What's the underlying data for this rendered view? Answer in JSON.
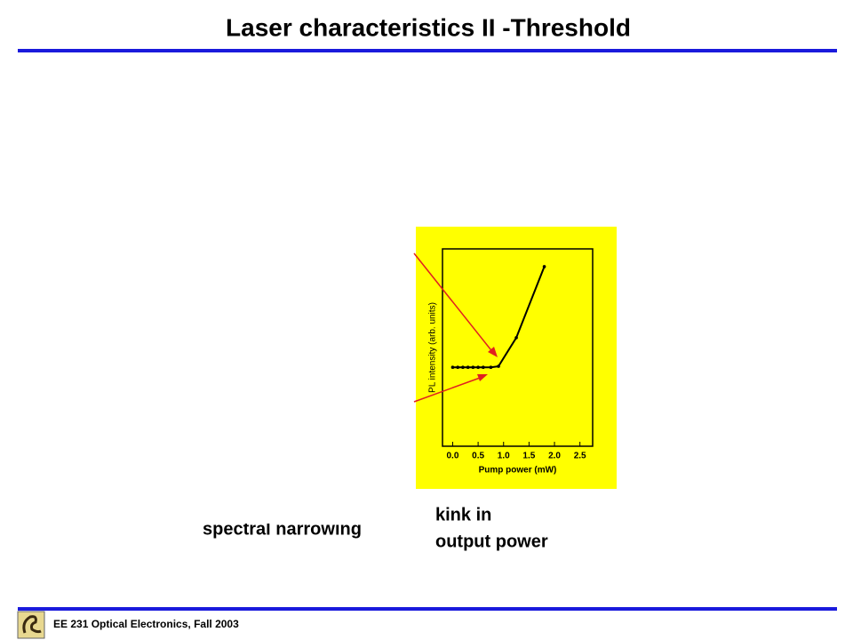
{
  "header": {
    "title": "Laser characteristics II -Threshold"
  },
  "chart_data": {
    "type": "line",
    "xlabel": "Pump power (mW)",
    "ylabel": "PL intensity (arb. units)",
    "x": [
      0.0,
      0.1,
      0.2,
      0.3,
      0.4,
      0.5,
      0.6,
      0.75,
      0.9,
      1.25,
      1.8
    ],
    "series": [
      {
        "color": "#000000",
        "values": [
          4.0,
          4.0,
          4.0,
          4.0,
          4.0,
          4.0,
          4.0,
          4.0,
          4.05,
          5.5,
          9.1
        ]
      }
    ],
    "xlim": [
      -0.2,
      2.75
    ],
    "ylim": [
      0,
      10
    ],
    "xticks": [
      {
        "value": 0,
        "label": "0.0"
      },
      {
        "value": 0.5,
        "label": "0.5"
      },
      {
        "value": 1,
        "label": "1.0"
      },
      {
        "value": 1.5,
        "label": "1.5"
      },
      {
        "value": 2,
        "label": "2.0"
      },
      {
        "value": 2.5,
        "label": "2.5"
      }
    ],
    "background": "#ffff00"
  },
  "annotations": {
    "left": "spectral narrowing",
    "right": [
      "kink in",
      "output power"
    ]
  },
  "footer": {
    "text": "EE 231 Optical Electronics, Fall 2003"
  }
}
